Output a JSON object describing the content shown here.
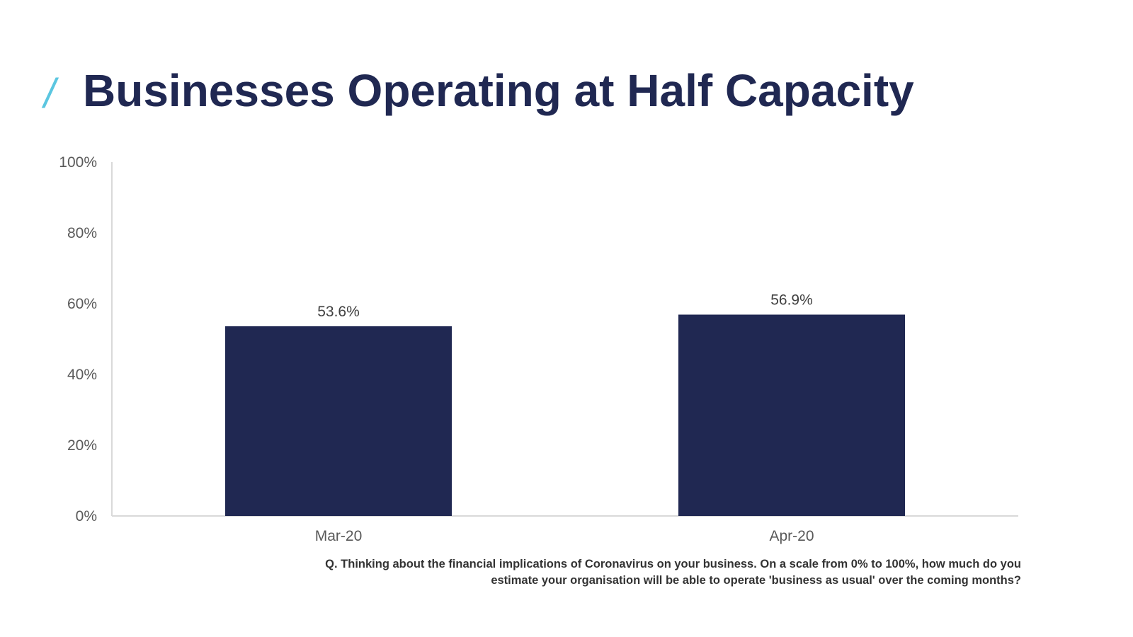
{
  "header": {
    "slash_glyph": "/",
    "title": "Businesses Operating at Half Capacity"
  },
  "colors": {
    "title": "#202852",
    "accent": "#5bc6e0",
    "bar": "#202852",
    "axis": "#d9d9d9",
    "text": "#595959"
  },
  "chart_data": {
    "type": "bar",
    "title": "Businesses Operating at Half Capacity",
    "categories": [
      "Mar-20",
      "Apr-20"
    ],
    "values": [
      53.6,
      56.9
    ],
    "value_labels": [
      "53.6%",
      "56.9%"
    ],
    "ylim": [
      0,
      100
    ],
    "yticks": [
      0,
      20,
      40,
      60,
      80,
      100
    ],
    "ytick_labels": [
      "0%",
      "20%",
      "40%",
      "60%",
      "80%",
      "100%"
    ],
    "xlabel": "",
    "ylabel": "",
    "grid": false,
    "legend": "none"
  },
  "footnote": {
    "text": "Q. Thinking about the financial implications of Coronavirus on your business. On a scale from 0% to 100%, how much do you estimate your organisation will be able to operate 'business as usual' over the coming months?"
  }
}
